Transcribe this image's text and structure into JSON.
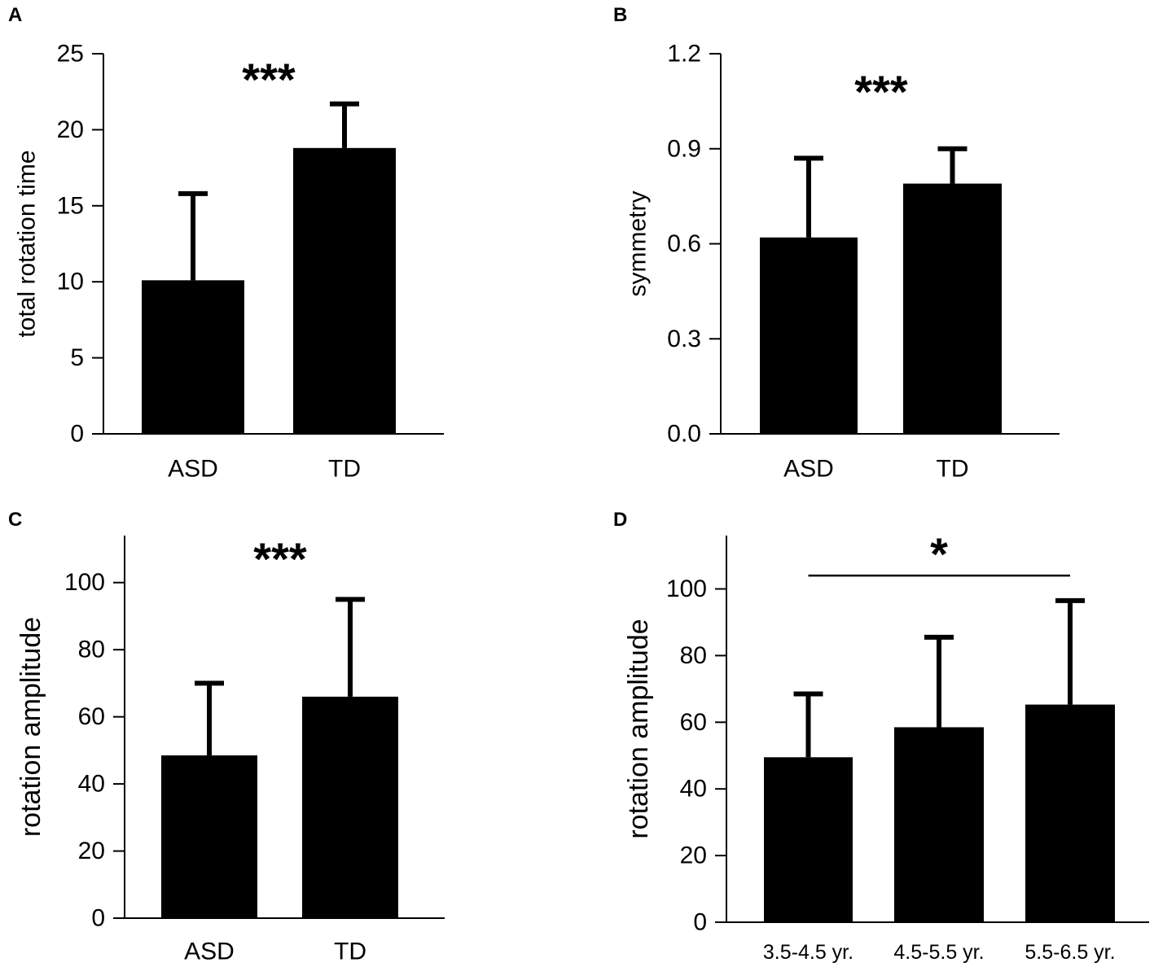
{
  "figure": {
    "background": "#ffffff",
    "bar_color": "#000000"
  },
  "chart_data": [
    {
      "panel": "A",
      "type": "bar",
      "categories": [
        "ASD",
        "TD"
      ],
      "values": [
        10.1,
        18.8
      ],
      "error_upper": [
        15.8,
        21.7
      ],
      "ylabel": "total rotation time",
      "xlabel": "",
      "ylim": [
        0,
        25
      ],
      "yticks": [
        0,
        5,
        10,
        15,
        20,
        25
      ],
      "ytick_labels": [
        "0",
        "5",
        "10",
        "15",
        "20",
        "25"
      ],
      "significance": "***",
      "significance_bracket": null
    },
    {
      "panel": "B",
      "type": "bar",
      "categories": [
        "ASD",
        "TD"
      ],
      "values": [
        0.62,
        0.79
      ],
      "error_upper": [
        0.87,
        0.9
      ],
      "ylabel": "symmetry",
      "xlabel": "",
      "ylim": [
        0,
        1.2
      ],
      "yticks": [
        0,
        0.3,
        0.6,
        0.9,
        1.2
      ],
      "ytick_labels": [
        "0.0",
        "0.3",
        "0.6",
        "0.9",
        "1.2"
      ],
      "significance": "***",
      "significance_bracket": null
    },
    {
      "panel": "C",
      "type": "bar",
      "categories": [
        "ASD",
        "TD"
      ],
      "values": [
        48.5,
        66.0
      ],
      "error_upper": [
        70.0,
        95.0
      ],
      "ylabel": "rotation amplitude",
      "xlabel": "",
      "ylim": [
        0,
        114
      ],
      "yticks": [
        0,
        20,
        40,
        60,
        80,
        100
      ],
      "ytick_labels": [
        "0",
        "20",
        "40",
        "60",
        "80",
        "100"
      ],
      "significance": "***",
      "significance_bracket": null
    },
    {
      "panel": "D",
      "type": "bar",
      "categories": [
        "3.5-4.5 yr.",
        "4.5-5.5 yr.",
        "5.5-6.5 yr."
      ],
      "values": [
        49.5,
        58.5,
        65.3
      ],
      "error_upper": [
        68.5,
        85.5,
        96.5
      ],
      "ylabel": "rotation amplitude",
      "xlabel": "",
      "ylim": [
        0,
        116
      ],
      "yticks": [
        0,
        20,
        40,
        60,
        80,
        100
      ],
      "ytick_labels": [
        "0",
        "20",
        "40",
        "60",
        "80",
        "100"
      ],
      "significance": "*",
      "significance_bracket": {
        "from_category": 0,
        "to_category": 2,
        "level": 104
      }
    }
  ]
}
